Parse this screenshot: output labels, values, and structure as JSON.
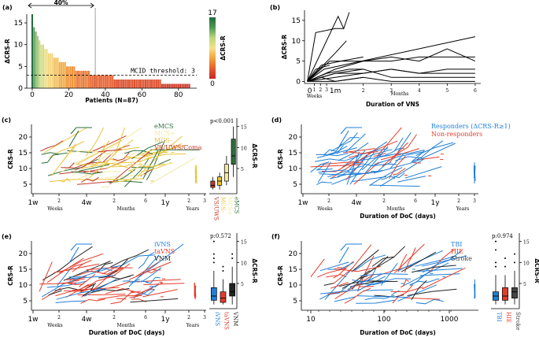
{
  "chart_data": [
    {
      "panel": "(a)",
      "type": "bar",
      "xlabel": "Patients (N=87)",
      "ylabel": "ΔCRS-R",
      "xticks": [
        "0",
        "20",
        "40",
        "60",
        "80"
      ],
      "yticks": [
        "0",
        "5",
        "10",
        "15"
      ],
      "xlim": [
        -3,
        90
      ],
      "ylim": [
        0,
        17
      ],
      "values": [
        17,
        14,
        13,
        12,
        11,
        10,
        10,
        9,
        9,
        8,
        8,
        8,
        7,
        7,
        7,
        6,
        6,
        6,
        6,
        5,
        5,
        5,
        5,
        5,
        4,
        4,
        4,
        4,
        4,
        4,
        4,
        4,
        3,
        3,
        3,
        3,
        3,
        3,
        3,
        3,
        3,
        3,
        3,
        3,
        3,
        2,
        2,
        2,
        2,
        2,
        2,
        2,
        2,
        2,
        2,
        2,
        2,
        2,
        2,
        2,
        2,
        2,
        2,
        2,
        2,
        2,
        2,
        2,
        2,
        2,
        2,
        1,
        1,
        1,
        1,
        1,
        1,
        1,
        1,
        1,
        1,
        1,
        1,
        1,
        1,
        1,
        1
      ],
      "threshold": 3,
      "threshold_label": "MCID threshold: 3",
      "bracket_label": "40%",
      "colorbar": {
        "label": "ΔCRS-R",
        "min": "0",
        "max": "17"
      }
    },
    {
      "panel": "(b)",
      "type": "line",
      "xlabel": "Duration of VNS",
      "ylabel": "ΔCRS-R",
      "xticks": [
        "0",
        "1",
        "2",
        "3",
        "4",
        "5",
        "6"
      ],
      "yticks": [
        "0",
        "5",
        "10",
        "15"
      ],
      "sub_ticks": [
        "1",
        "2",
        "3"
      ],
      "sub_labels": [
        "Weeks",
        "1m"
      ],
      "months_label": "Months",
      "xlim": [
        -0.1,
        6.2
      ],
      "ylim": [
        -0.5,
        17.5
      ],
      "series": [
        [
          [
            0,
            0
          ],
          [
            0.3,
            12
          ],
          [
            1,
            13
          ],
          [
            1.3,
            13
          ]
        ],
        [
          [
            0,
            0
          ],
          [
            1.1,
            16
          ],
          [
            1.3,
            13
          ],
          [
            1.5,
            17
          ]
        ],
        [
          [
            0,
            0
          ],
          [
            1,
            7
          ],
          [
            1.4,
            10
          ]
        ],
        [
          [
            0,
            0
          ],
          [
            0.6,
            3
          ],
          [
            6,
            11
          ]
        ],
        [
          [
            0,
            0
          ],
          [
            0.8,
            5
          ],
          [
            2,
            5
          ],
          [
            3,
            6
          ],
          [
            4,
            5
          ],
          [
            5,
            8
          ],
          [
            6,
            5
          ]
        ],
        [
          [
            0,
            0
          ],
          [
            1,
            3
          ],
          [
            2,
            5
          ],
          [
            3,
            5
          ],
          [
            4,
            6
          ],
          [
            6,
            6
          ]
        ],
        [
          [
            0,
            0
          ],
          [
            1,
            2
          ],
          [
            2,
            2
          ],
          [
            3,
            3
          ],
          [
            4,
            2
          ],
          [
            5,
            3
          ],
          [
            6,
            3
          ]
        ],
        [
          [
            0,
            0
          ],
          [
            1,
            1
          ],
          [
            2,
            2
          ],
          [
            3,
            3
          ],
          [
            4,
            2
          ],
          [
            6,
            2
          ]
        ],
        [
          [
            0,
            0
          ],
          [
            0.5,
            4
          ],
          [
            1.2,
            5
          ],
          [
            2,
            6
          ]
        ],
        [
          [
            0,
            0
          ],
          [
            1,
            2
          ],
          [
            2,
            3
          ],
          [
            3,
            1
          ],
          [
            4,
            1
          ],
          [
            5,
            1
          ],
          [
            6,
            1
          ]
        ],
        [
          [
            0,
            0
          ],
          [
            0.7,
            2
          ],
          [
            1.5,
            3
          ],
          [
            2,
            3
          ]
        ],
        [
          [
            0,
            0
          ],
          [
            1,
            0
          ],
          [
            2,
            1
          ],
          [
            3,
            0
          ],
          [
            6,
            0
          ]
        ],
        [
          [
            0,
            0
          ],
          [
            0.5,
            1
          ],
          [
            1,
            0
          ],
          [
            2,
            1
          ]
        ],
        [
          [
            0,
            0
          ],
          [
            0.3,
            3
          ],
          [
            0.8,
            4
          ]
        ]
      ]
    },
    {
      "panel": "(c)",
      "type": "line",
      "ylabel": "CRS-R",
      "yticks": [
        "5",
        "10",
        "15",
        "20"
      ],
      "legend": [
        {
          "name": "eMCS",
          "color": "#2f6e3e"
        },
        {
          "name": "MCS+",
          "color": "#f3e8a5"
        },
        {
          "name": "MCS-",
          "color": "#e8c43a"
        },
        {
          "name": "VS/UWS/Coma",
          "color": "#c0392b"
        }
      ],
      "pvalue": "p<0.001",
      "box_labels": [
        "VS/UWS",
        "MCS-",
        "MCS+",
        "eMCS"
      ],
      "box_ylabel": "ΔCRS-R",
      "box_yticks": [
        "5",
        "10",
        "15"
      ]
    },
    {
      "panel": "(d)",
      "type": "line",
      "xlabel": "Duration of DoC (days)",
      "ylabel": "CRS-R",
      "yticks": [
        "5",
        "10",
        "15",
        "20"
      ],
      "legend": [
        {
          "name": "Responders (ΔCRS-R≥1)",
          "color": "#1f7fd8"
        },
        {
          "name": "Non-responders",
          "color": "#e33d2b"
        }
      ]
    },
    {
      "panel": "(e)",
      "type": "line",
      "xlabel": "Duration of DoC (days)",
      "ylabel": "CRS-R",
      "yticks": [
        "5",
        "10",
        "15",
        "20"
      ],
      "legend": [
        {
          "name": "iVNS",
          "color": "#1f7fd8"
        },
        {
          "name": "taVNS",
          "color": "#e33d2b"
        },
        {
          "name": "VNM",
          "color": "#222222"
        }
      ],
      "pvalue": "p:0.572",
      "box_labels": [
        "iVNS",
        "taVNS",
        "VNM"
      ],
      "box_ylabel": "ΔCRS-R",
      "box_yticks": [
        "5",
        "10",
        "15"
      ]
    },
    {
      "panel": "(f)",
      "type": "line",
      "xlabel": "Duration of DoC (days)",
      "ylabel": "CRS-R",
      "yticks": [
        "5",
        "10",
        "15",
        "20"
      ],
      "xticks": [
        "10",
        "100",
        "1000"
      ],
      "legend": [
        {
          "name": "TBI",
          "color": "#1f7fd8"
        },
        {
          "name": "HIE",
          "color": "#e33d2b"
        },
        {
          "name": "Stroke",
          "color": "#444444"
        }
      ],
      "pvalue": "p:0.974",
      "box_labels": [
        "TBI",
        "HIE",
        "Stroke"
      ],
      "box_ylabel": "ΔCRS-R",
      "box_yticks": [
        "5",
        "10",
        "15"
      ]
    }
  ],
  "doc_axis": {
    "ticks": [
      "1w",
      "4w",
      "1y"
    ],
    "sub_ticks": [
      "2",
      "2",
      "6"
    ],
    "year_ticks": [
      "2",
      "3"
    ],
    "labels": [
      "Weeks",
      "Months",
      "Years"
    ]
  }
}
